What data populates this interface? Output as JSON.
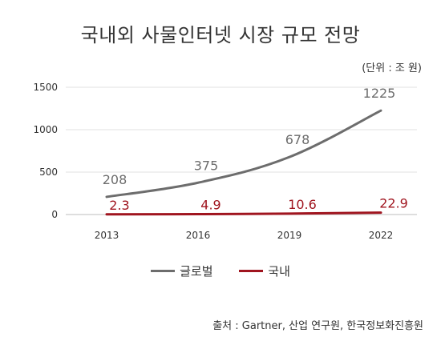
{
  "title": "국내외 사물인터넷 시장 규모 전망",
  "unit_label": "(단위 : 조 원)",
  "source": "출처 : Gartner, 산업 연구원, 한국정보화진흥원",
  "chart_data": {
    "type": "line",
    "categories": [
      "2013",
      "2016",
      "2019",
      "2022"
    ],
    "series": [
      {
        "name": "글로벌",
        "values": [
          208,
          375,
          678,
          1225
        ],
        "labels": [
          "208",
          "375",
          "678",
          "1225"
        ],
        "color": "#6d6d6d"
      },
      {
        "name": "국내",
        "values": [
          2.3,
          4.9,
          10.6,
          22.9
        ],
        "labels": [
          "2.3",
          "4.9",
          "10.6",
          "22.9"
        ],
        "color": "#a0151f"
      }
    ],
    "yticks": [
      "0",
      "500",
      "1000",
      "1500"
    ],
    "ylim": [
      0,
      1500
    ],
    "xlabel": "",
    "ylabel": "",
    "grid": true,
    "legend_position": "bottom"
  }
}
